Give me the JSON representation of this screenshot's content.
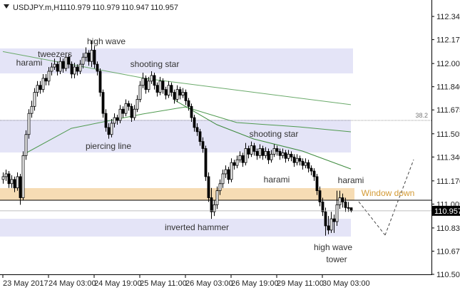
{
  "chart_data": {
    "type": "candlestick",
    "symbol": "USDJPY.m,H1",
    "ylim": [
      110.505,
      112.457
    ],
    "yticks": [
      {
        "value": 112.34,
        "label": "112.340"
      },
      112.175,
      112.005,
      {
        "value": 111.84,
        "label": "111.840"
      },
      111.675,
      111.505,
      {
        "value": 111.34,
        "label": "111.340"
      },
      {
        "value": 111.17,
        "label": "111.170"
      },
      111.005,
      110.835,
      {
        "value": 110.67,
        "label": "110.670"
      },
      110.505
    ],
    "xlim": [
      -1,
      150.25
    ],
    "xticks": [
      {
        "value": 0,
        "label": "23 May 2017"
      },
      {
        "value": 16,
        "label": "24 May 03:00"
      },
      {
        "value": 32,
        "label": "24 May 19:00"
      },
      {
        "value": 48,
        "label": "25 May 11:00"
      },
      {
        "value": 64,
        "label": "26 May 03:00"
      },
      {
        "value": 80,
        "label": "26 May 19:00"
      },
      {
        "value": 96,
        "label": "29 May 11:00"
      },
      {
        "value": 112,
        "label": "30 May 03:00"
      }
    ],
    "levels": [
      {
        "label": "38.2",
        "value": 111.6
      }
    ],
    "lines": [
      {
        "color": "#6aaa6a",
        "x": [
          0,
          50,
          122
        ],
        "values": [
          112.09,
          111.899,
          111.712
        ]
      },
      {
        "color": "#4f9a4f",
        "x": [
          8,
          24,
          49,
          64,
          82,
          104,
          122
        ],
        "values": [
          111.367,
          111.544,
          111.646,
          111.696,
          111.585,
          111.554,
          111.519
        ]
      },
      {
        "color": "#3d8a3d",
        "x": [
          60,
          75,
          88,
          105,
          122
        ],
        "values": [
          111.747,
          111.57,
          111.468,
          111.382,
          111.255
        ]
      }
    ],
    "annotations": [
      "harami",
      "tweezers",
      "high wave",
      "shooting star",
      "piercing line",
      "shooting star",
      "harami",
      "harami",
      "Window down",
      "inverted hammer",
      "high wave",
      "tower"
    ],
    "ohlc": [
      [
        111.18,
        111.23,
        111.15,
        111.2
      ],
      [
        111.2,
        111.25,
        111.17,
        111.22
      ],
      [
        111.22,
        111.24,
        111.12,
        111.15
      ],
      [
        111.15,
        111.21,
        111.12,
        111.18
      ],
      [
        111.18,
        111.2,
        111.09,
        111.12
      ],
      [
        111.12,
        111.23,
        111.1,
        111.2
      ],
      [
        111.2,
        111.22,
        111.0,
        111.05
      ],
      [
        111.05,
        111.38,
        111.03,
        111.35
      ],
      [
        111.35,
        111.53,
        111.32,
        111.5
      ],
      [
        111.5,
        111.68,
        111.47,
        111.65
      ],
      [
        111.65,
        111.74,
        111.62,
        111.7
      ],
      [
        111.7,
        111.83,
        111.67,
        111.8
      ],
      [
        111.8,
        111.88,
        111.77,
        111.85
      ],
      [
        111.85,
        111.88,
        111.79,
        111.82
      ],
      [
        111.82,
        111.93,
        111.8,
        111.9
      ],
      [
        111.9,
        111.93,
        111.85,
        111.88
      ],
      [
        111.88,
        111.98,
        111.85,
        111.95
      ],
      [
        111.95,
        112.01,
        111.92,
        111.98
      ],
      [
        111.98,
        112.04,
        111.96,
        112.0
      ],
      [
        112.0,
        112.02,
        111.92,
        111.95
      ],
      [
        111.95,
        112.05,
        111.93,
        112.02
      ],
      [
        112.02,
        112.04,
        111.94,
        111.97
      ],
      [
        111.97,
        112.08,
        111.95,
        112.05
      ],
      [
        112.05,
        112.07,
        111.97,
        112.0
      ],
      [
        112.0,
        112.02,
        111.9,
        111.93
      ],
      [
        111.93,
        112.01,
        111.9,
        111.98
      ],
      [
        111.98,
        112.0,
        111.92,
        111.95
      ],
      [
        111.95,
        112.03,
        111.93,
        112.0
      ],
      [
        112.0,
        112.08,
        111.97,
        112.05
      ],
      [
        112.05,
        112.12,
        112.02,
        112.08
      ],
      [
        112.08,
        112.1,
        111.99,
        112.02
      ],
      [
        112.02,
        112.17,
        111.98,
        112.1
      ],
      [
        112.1,
        112.13,
        111.97,
        112.0
      ],
      [
        112.0,
        112.02,
        111.92,
        111.95
      ],
      [
        111.95,
        111.97,
        111.77,
        111.8
      ],
      [
        111.8,
        111.82,
        111.62,
        111.65
      ],
      [
        111.65,
        111.68,
        111.52,
        111.55
      ],
      [
        111.55,
        111.58,
        111.47,
        111.5
      ],
      [
        111.5,
        111.61,
        111.48,
        111.58
      ],
      [
        111.58,
        111.65,
        111.55,
        111.62
      ],
      [
        111.62,
        111.64,
        111.57,
        111.6
      ],
      [
        111.6,
        111.71,
        111.58,
        111.68
      ],
      [
        111.68,
        111.7,
        111.62,
        111.65
      ],
      [
        111.65,
        111.75,
        111.63,
        111.72
      ],
      [
        111.72,
        111.74,
        111.67,
        111.7
      ],
      [
        111.7,
        111.72,
        111.59,
        111.62
      ],
      [
        111.62,
        111.71,
        111.6,
        111.68
      ],
      [
        111.68,
        111.78,
        111.66,
        111.75
      ],
      [
        111.75,
        111.88,
        111.73,
        111.85
      ],
      [
        111.85,
        111.94,
        111.83,
        111.9
      ],
      [
        111.9,
        111.92,
        111.79,
        111.82
      ],
      [
        111.82,
        111.91,
        111.8,
        111.88
      ],
      [
        111.88,
        111.95,
        111.86,
        111.92
      ],
      [
        111.92,
        111.94,
        111.82,
        111.85
      ],
      [
        111.85,
        111.87,
        111.77,
        111.8
      ],
      [
        111.8,
        111.91,
        111.78,
        111.88
      ],
      [
        111.88,
        111.9,
        111.79,
        111.82
      ],
      [
        111.82,
        111.84,
        111.75,
        111.78
      ],
      [
        111.78,
        111.88,
        111.76,
        111.85
      ],
      [
        111.85,
        111.87,
        111.77,
        111.8
      ],
      [
        111.8,
        111.82,
        111.72,
        111.75
      ],
      [
        111.75,
        111.85,
        111.73,
        111.82
      ],
      [
        111.82,
        111.84,
        111.75,
        111.78
      ],
      [
        111.78,
        111.83,
        111.76,
        111.8
      ],
      [
        111.8,
        111.82,
        111.71,
        111.74
      ],
      [
        111.74,
        111.76,
        111.67,
        111.7
      ],
      [
        111.7,
        111.72,
        111.59,
        111.62
      ],
      [
        111.62,
        111.64,
        111.52,
        111.55
      ],
      [
        111.55,
        111.58,
        111.49,
        111.52
      ],
      [
        111.52,
        111.54,
        111.42,
        111.45
      ],
      [
        111.45,
        111.48,
        111.37,
        111.4
      ],
      [
        111.4,
        111.42,
        111.17,
        111.2
      ],
      [
        111.2,
        111.23,
        111.02,
        111.05
      ],
      [
        111.05,
        111.12,
        110.9,
        110.95
      ],
      [
        110.95,
        111.03,
        110.92,
        111.0
      ],
      [
        111.0,
        111.13,
        110.97,
        111.1
      ],
      [
        111.1,
        111.18,
        111.07,
        111.15
      ],
      [
        111.15,
        111.25,
        111.12,
        111.22
      ],
      [
        111.22,
        111.28,
        111.19,
        111.25
      ],
      [
        111.25,
        111.27,
        111.15,
        111.18
      ],
      [
        111.18,
        111.33,
        111.16,
        111.3
      ],
      [
        111.3,
        111.32,
        111.25,
        111.28
      ],
      [
        111.28,
        111.35,
        111.26,
        111.32
      ],
      [
        111.32,
        111.38,
        111.3,
        111.35
      ],
      [
        111.35,
        111.37,
        111.27,
        111.3
      ],
      [
        111.3,
        111.44,
        111.28,
        111.4
      ],
      [
        111.4,
        111.42,
        111.33,
        111.36
      ],
      [
        111.36,
        111.45,
        111.34,
        111.42
      ],
      [
        111.42,
        111.44,
        111.35,
        111.38
      ],
      [
        111.38,
        111.4,
        111.32,
        111.35
      ],
      [
        111.35,
        111.43,
        111.33,
        111.4
      ],
      [
        111.4,
        111.42,
        111.32,
        111.35
      ],
      [
        111.35,
        111.41,
        111.33,
        111.38
      ],
      [
        111.38,
        111.4,
        111.29,
        111.32
      ],
      [
        111.32,
        111.39,
        111.3,
        111.36
      ],
      [
        111.36,
        111.43,
        111.34,
        111.4
      ],
      [
        111.4,
        111.42,
        111.35,
        111.38
      ],
      [
        111.38,
        111.4,
        111.32,
        111.35
      ],
      [
        111.35,
        111.4,
        111.33,
        111.37
      ],
      [
        111.37,
        111.39,
        111.3,
        111.33
      ],
      [
        111.33,
        111.39,
        111.31,
        111.36
      ],
      [
        111.36,
        111.38,
        111.31,
        111.34
      ],
      [
        111.34,
        111.36,
        111.27,
        111.3
      ],
      [
        111.3,
        111.36,
        111.28,
        111.33
      ],
      [
        111.33,
        111.35,
        111.28,
        111.31
      ],
      [
        111.31,
        111.33,
        111.25,
        111.28
      ],
      [
        111.28,
        111.33,
        111.26,
        111.3
      ],
      [
        111.3,
        111.32,
        111.23,
        111.26
      ],
      [
        111.26,
        111.28,
        111.21,
        111.24
      ],
      [
        111.24,
        111.26,
        111.17,
        111.2
      ],
      [
        111.2,
        111.22,
        111.07,
        111.1
      ],
      [
        111.1,
        111.13,
        110.99,
        111.02
      ],
      [
        111.02,
        111.05,
        110.92,
        110.95
      ],
      [
        110.95,
        110.98,
        110.78,
        110.85
      ],
      [
        110.85,
        110.92,
        110.79,
        110.82
      ],
      [
        110.82,
        110.95,
        110.8,
        110.9
      ],
      [
        110.9,
        110.93,
        110.8,
        110.88
      ],
      [
        110.88,
        111.1,
        110.85,
        111.0
      ],
      [
        111.0,
        111.1,
        110.97,
        111.05
      ],
      [
        111.05,
        111.08,
        110.98,
        111.02
      ],
      [
        111.02,
        111.05,
        110.95,
        110.98
      ],
      [
        110.98,
        111.02,
        110.95,
        110.979
      ],
      [
        110.979,
        110.979,
        110.947,
        110.957
      ]
    ]
  }
}
